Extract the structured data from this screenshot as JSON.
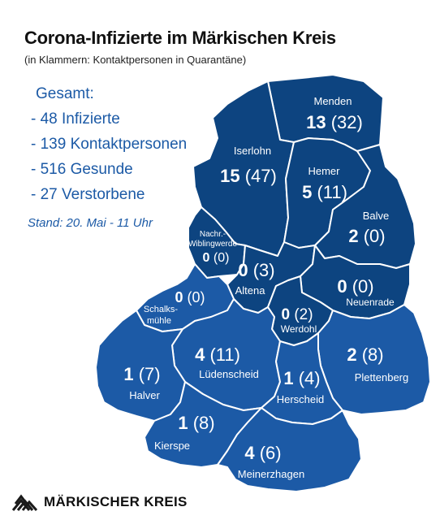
{
  "header": {
    "title": "Corona-Infizierte im Märkischen Kreis",
    "subtitle": "(in Klammern: Kontaktpersonen in Quarantäne)"
  },
  "summary": {
    "heading": "Gesamt:",
    "items": [
      "- 48 Infizierte",
      "- 139 Kontaktpersonen",
      "- 516 Gesunde",
      "- 27 Verstorbene"
    ],
    "stand": "Stand: 20. Mai - 11 Uhr"
  },
  "colors": {
    "dark": "#0d4480",
    "medium": "#1c5aa6",
    "text_blue": "#1c5aa6"
  },
  "regions": {
    "menden": {
      "name": "Menden",
      "infected": "13",
      "contacts": "(32)"
    },
    "iserlohn": {
      "name": "Iserlohn",
      "infected": "15",
      "contacts": "(47)"
    },
    "hemer": {
      "name": "Hemer",
      "infected": "5",
      "contacts": "(11)"
    },
    "balve": {
      "name": "Balve",
      "infected": "2",
      "contacts": "(0)"
    },
    "nachrodt": {
      "name_line1": "Nachr.-",
      "name_line2": "Wiblingwerde",
      "infected": "0",
      "contacts": "(0)"
    },
    "altena": {
      "name": "Altena",
      "infected": "0",
      "contacts": "(3)"
    },
    "neuenrade": {
      "name": "Neuenrade",
      "infected": "0",
      "contacts": "(0)"
    },
    "schalksmuehle": {
      "name_line1": "Schalks-",
      "name_line2": "mühle",
      "infected": "0",
      "contacts": "(0)"
    },
    "werdohl": {
      "name": "Werdohl",
      "infected": "0",
      "contacts": "(2)"
    },
    "luedenscheid": {
      "name": "Lüdenscheid",
      "infected": "4",
      "contacts": "(11)"
    },
    "plettenberg": {
      "name": "Plettenberg",
      "infected": "2",
      "contacts": "(8)"
    },
    "halver": {
      "name": "Halver",
      "infected": "1",
      "contacts": "(7)"
    },
    "herscheid": {
      "name": "Herscheid",
      "infected": "1",
      "contacts": "(4)"
    },
    "kierspe": {
      "name": "Kierspe",
      "infected": "1",
      "contacts": "(8)"
    },
    "meinerzhagen": {
      "name": "Meinerzhagen",
      "infected": "4",
      "contacts": "(6)"
    }
  },
  "logo": {
    "text": "MÄRKISCHER KREIS",
    "icon": "district-logo-icon"
  }
}
